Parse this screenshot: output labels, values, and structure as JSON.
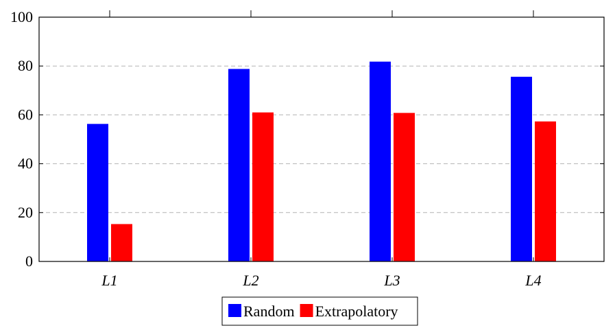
{
  "chart_data": {
    "type": "bar",
    "categories": [
      "L1",
      "L2",
      "L3",
      "L4"
    ],
    "series": [
      {
        "name": "Random",
        "color": "#0000ff",
        "values": [
          56.3,
          78.8,
          81.8,
          75.6
        ]
      },
      {
        "name": "Extrapolatory",
        "color": "#ff0000",
        "values": [
          15.3,
          61.0,
          60.8,
          57.3
        ]
      }
    ],
    "title": "",
    "xlabel": "",
    "ylabel": "",
    "ylim": [
      0,
      100
    ],
    "yticks": [
      0,
      20,
      40,
      60,
      80,
      100
    ],
    "grid": "horizontal-dashed",
    "legend_position": "bottom-center"
  }
}
